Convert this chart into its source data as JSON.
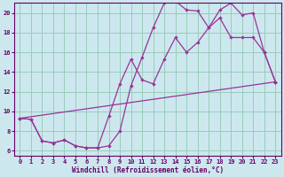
{
  "bg_color": "#cce8ee",
  "line_color": "#993399",
  "grid_color": "#99ccbb",
  "xlabel": "Windchill (Refroidissement éolien,°C)",
  "xlabel_color": "#660066",
  "tick_color": "#660066",
  "xlim": [
    -0.5,
    23.5
  ],
  "ylim": [
    5.5,
    21.0
  ],
  "yticks": [
    6,
    8,
    10,
    12,
    14,
    16,
    18,
    20
  ],
  "xticks": [
    0,
    1,
    2,
    3,
    4,
    5,
    6,
    7,
    8,
    9,
    10,
    11,
    12,
    13,
    14,
    15,
    16,
    17,
    18,
    19,
    20,
    21,
    22,
    23
  ],
  "line1_x": [
    0,
    1,
    2,
    3,
    4,
    5,
    6,
    7,
    8,
    9,
    10,
    11,
    12,
    13,
    14,
    15,
    16,
    17,
    18,
    19,
    20,
    21,
    22,
    23
  ],
  "line1_y": [
    9.3,
    9.2,
    7.0,
    6.8,
    7.1,
    6.5,
    6.3,
    6.3,
    6.5,
    8.0,
    12.6,
    15.5,
    18.5,
    21.0,
    21.2,
    20.3,
    20.2,
    18.5,
    20.3,
    21.0,
    19.8,
    20.0,
    16.0,
    13.0
  ],
  "line2_x": [
    0,
    1,
    2,
    3,
    4,
    5,
    6,
    7,
    8,
    9,
    10,
    11,
    12,
    13,
    14,
    15,
    16,
    17,
    18,
    19,
    20,
    21,
    22,
    23
  ],
  "line2_y": [
    9.3,
    9.2,
    7.0,
    6.8,
    7.1,
    6.5,
    6.3,
    6.3,
    9.5,
    12.8,
    15.3,
    13.2,
    12.8,
    15.3,
    17.5,
    16.0,
    17.0,
    18.5,
    19.5,
    17.5,
    17.5,
    17.5,
    16.0,
    13.0
  ],
  "line3_x": [
    0,
    23
  ],
  "line3_y": [
    9.3,
    13.0
  ]
}
